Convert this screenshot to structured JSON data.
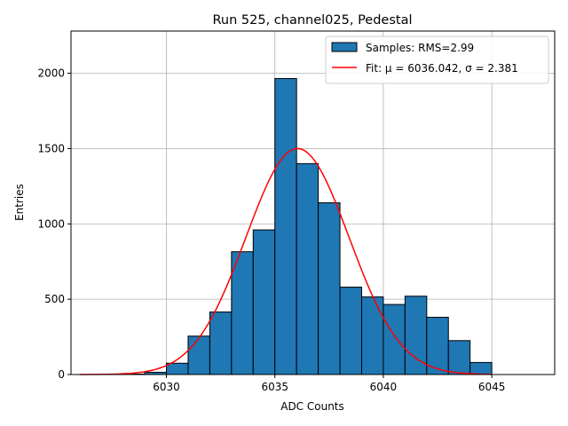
{
  "chart_data": {
    "type": "bar",
    "title": "Run 525, channel025, Pedestal",
    "xlabel": "ADC Counts",
    "ylabel": "Entries",
    "xlim": [
      6025.6,
      6047.9
    ],
    "ylim": [
      0,
      2280
    ],
    "xticks": [
      6030,
      6035,
      6040,
      6045
    ],
    "yticks": [
      0,
      500,
      1000,
      1500,
      2000
    ],
    "grid": true,
    "legend_position": "top-right",
    "bin_edges": [
      6027,
      6028,
      6029,
      6030,
      6031,
      6032,
      6033,
      6034,
      6035,
      6036,
      6037,
      6038,
      6039,
      6040,
      6041,
      6042,
      6043,
      6044,
      6045
    ],
    "counts": [
      0,
      3,
      15,
      75,
      255,
      415,
      815,
      960,
      1965,
      1400,
      1140,
      580,
      515,
      465,
      520,
      380,
      225,
      80
    ],
    "fit": {
      "mu": 6036.042,
      "sigma": 2.381,
      "amplitude": 1500,
      "x_range": [
        6026,
        6045
      ]
    },
    "series": [
      {
        "name": "Samples: RMS=2.99",
        "kind": "histogram",
        "color": "#1f77b4"
      },
      {
        "name": "Fit: μ = 6036.042, σ = 2.381",
        "kind": "line",
        "color": "#ff0000"
      }
    ]
  }
}
